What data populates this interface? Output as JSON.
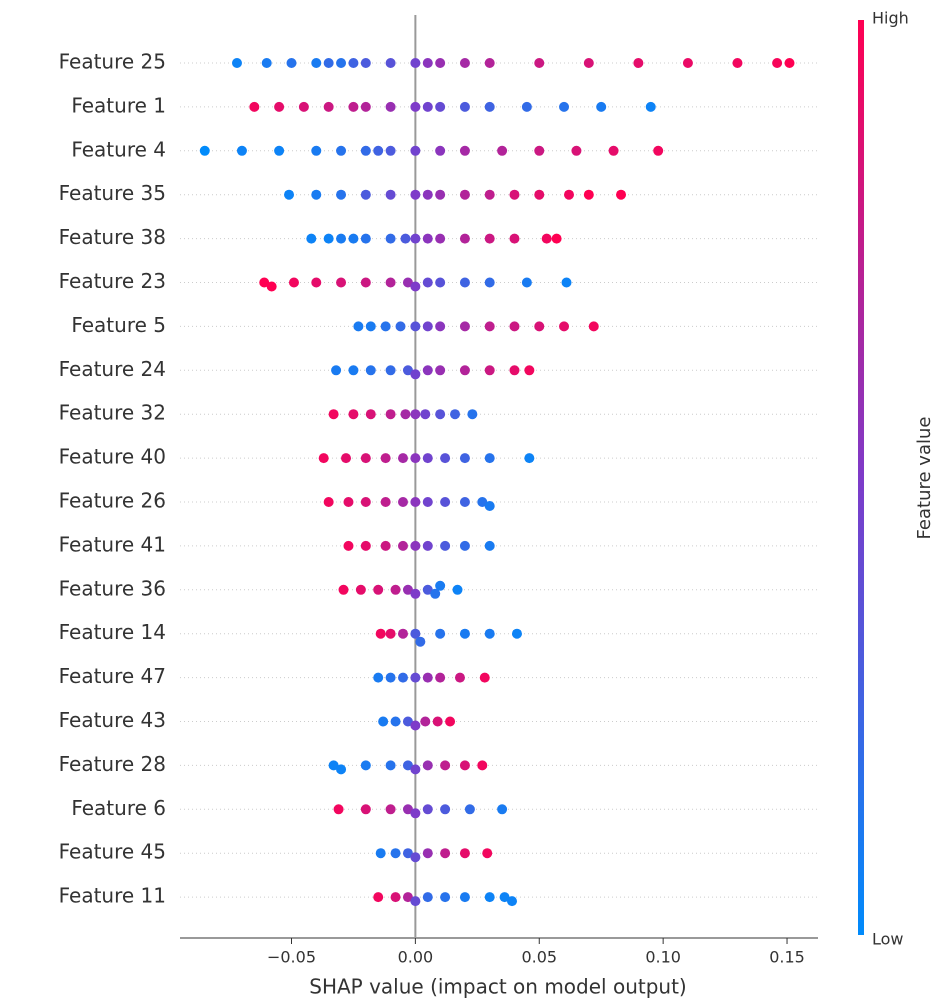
{
  "chart_data": {
    "type": "beeswarm",
    "xlabel": "SHAP value (impact on model output)",
    "xlim": [
      -0.095,
      0.1625
    ],
    "xticks": [
      {
        "value": -0.05,
        "label": "−0.05"
      },
      {
        "value": 0,
        "label": "0.00"
      },
      {
        "value": 0.05,
        "label": "0.05"
      },
      {
        "value": 0.1,
        "label": "0.10"
      },
      {
        "value": 0.15,
        "label": "0.15"
      }
    ],
    "colormap": [
      "#008bfb",
      "#7e3bc9",
      "#ff0052"
    ],
    "colorbar": {
      "label": "Feature value",
      "high": "High",
      "low": "Low"
    },
    "series": [
      {
        "name": "Feature 25",
        "values": [
          -0.072,
          -0.06,
          -0.05,
          -0.04,
          -0.035,
          -0.03,
          -0.025,
          -0.02,
          -0.01,
          0,
          0.005,
          0.01,
          0.02,
          0.03,
          0.05,
          0.07,
          0.09,
          0.11,
          0.13,
          0.146,
          0.151
        ],
        "feature_values": [
          0.05,
          0.1,
          0.15,
          0.1,
          0.2,
          0.15,
          0.25,
          0.3,
          0.35,
          0.45,
          0.55,
          0.6,
          0.65,
          0.7,
          0.8,
          0.85,
          0.9,
          0.92,
          0.95,
          0.97,
          1
        ]
      },
      {
        "name": "Feature 1",
        "values": [
          -0.065,
          -0.055,
          -0.045,
          -0.035,
          -0.025,
          -0.02,
          -0.01,
          0,
          0.005,
          0.01,
          0.02,
          0.03,
          0.045,
          0.06,
          0.075,
          0.095
        ],
        "feature_values": [
          0.95,
          0.9,
          0.85,
          0.8,
          0.75,
          0.7,
          0.6,
          0.5,
          0.45,
          0.4,
          0.3,
          0.25,
          0.2,
          0.15,
          0.1,
          0.05
        ]
      },
      {
        "name": "Feature 4",
        "values": [
          -0.085,
          -0.07,
          -0.055,
          -0.04,
          -0.03,
          -0.02,
          -0.015,
          -0.01,
          0,
          0.01,
          0.02,
          0.035,
          0.05,
          0.065,
          0.08,
          0.098
        ],
        "feature_values": [
          0,
          0.05,
          0.05,
          0.1,
          0.15,
          0.2,
          0.25,
          0.3,
          0.45,
          0.55,
          0.65,
          0.7,
          0.8,
          0.85,
          0.9,
          0.95
        ]
      },
      {
        "name": "Feature 35",
        "values": [
          -0.051,
          -0.04,
          -0.03,
          -0.02,
          -0.01,
          0,
          0.005,
          0.01,
          0.02,
          0.03,
          0.04,
          0.05,
          0.062,
          0.07,
          0.083
        ],
        "feature_values": [
          0.05,
          0.1,
          0.15,
          0.3,
          0.4,
          0.5,
          0.55,
          0.6,
          0.7,
          0.75,
          0.85,
          0.9,
          0.95,
          1,
          1
        ]
      },
      {
        "name": "Feature 38",
        "values": [
          -0.042,
          -0.035,
          -0.03,
          -0.025,
          -0.02,
          -0.01,
          -0.004,
          0,
          0.005,
          0.01,
          0.02,
          0.03,
          0.04,
          0.053,
          0.057
        ],
        "feature_values": [
          0.05,
          0.05,
          0.1,
          0.1,
          0.15,
          0.2,
          0.3,
          0.45,
          0.55,
          0.6,
          0.7,
          0.8,
          0.85,
          0.95,
          1
        ]
      },
      {
        "name": "Feature 23",
        "values": [
          -0.061,
          -0.058,
          -0.049,
          -0.04,
          -0.03,
          -0.02,
          -0.01,
          -0.003,
          0,
          0.005,
          0.01,
          0.02,
          0.03,
          0.045,
          0.061
        ],
        "feature_values": [
          1,
          1,
          0.95,
          0.9,
          0.85,
          0.8,
          0.7,
          0.6,
          0.5,
          0.4,
          0.35,
          0.25,
          0.2,
          0.1,
          0.05
        ]
      },
      {
        "name": "Feature 5",
        "values": [
          -0.023,
          -0.018,
          -0.012,
          -0.006,
          0,
          0.005,
          0.01,
          0.02,
          0.03,
          0.04,
          0.05,
          0.06,
          0.072
        ],
        "feature_values": [
          0.1,
          0.1,
          0.15,
          0.2,
          0.35,
          0.45,
          0.55,
          0.65,
          0.75,
          0.8,
          0.85,
          0.9,
          0.95
        ]
      },
      {
        "name": "Feature 24",
        "values": [
          -0.032,
          -0.025,
          -0.018,
          -0.01,
          -0.003,
          0,
          0.005,
          0.01,
          0.02,
          0.03,
          0.04,
          0.046
        ],
        "feature_values": [
          0.1,
          0.1,
          0.15,
          0.2,
          0.3,
          0.45,
          0.55,
          0.6,
          0.7,
          0.8,
          0.9,
          0.95
        ]
      },
      {
        "name": "Feature 32",
        "values": [
          -0.033,
          -0.025,
          -0.018,
          -0.01,
          -0.004,
          0,
          0.004,
          0.01,
          0.016,
          0.023
        ],
        "feature_values": [
          0.95,
          0.9,
          0.85,
          0.75,
          0.65,
          0.55,
          0.45,
          0.35,
          0.25,
          0.15
        ]
      },
      {
        "name": "Feature 40",
        "values": [
          -0.037,
          -0.028,
          -0.02,
          -0.012,
          -0.005,
          0,
          0.005,
          0.012,
          0.02,
          0.03,
          0.046
        ],
        "feature_values": [
          0.95,
          0.9,
          0.85,
          0.75,
          0.65,
          0.55,
          0.45,
          0.35,
          0.25,
          0.15,
          0.05
        ]
      },
      {
        "name": "Feature 26",
        "values": [
          -0.035,
          -0.027,
          -0.02,
          -0.012,
          -0.005,
          0,
          0.005,
          0.012,
          0.02,
          0.027,
          0.03
        ],
        "feature_values": [
          0.95,
          0.9,
          0.85,
          0.75,
          0.65,
          0.55,
          0.45,
          0.35,
          0.25,
          0.15,
          0.1
        ]
      },
      {
        "name": "Feature 41",
        "values": [
          -0.027,
          -0.02,
          -0.012,
          -0.005,
          0,
          0.005,
          0.012,
          0.02,
          0.03
        ],
        "feature_values": [
          0.95,
          0.9,
          0.8,
          0.7,
          0.55,
          0.45,
          0.3,
          0.2,
          0.1
        ]
      },
      {
        "name": "Feature 36",
        "values": [
          -0.029,
          -0.022,
          -0.015,
          -0.008,
          -0.003,
          0,
          0.005,
          0.008,
          0.01,
          0.017
        ],
        "feature_values": [
          0.95,
          0.9,
          0.85,
          0.75,
          0.6,
          0.5,
          0.3,
          0.15,
          0.1,
          0.05
        ]
      },
      {
        "name": "Feature 14",
        "values": [
          -0.014,
          -0.01,
          -0.005,
          0,
          0.002,
          0.01,
          0.02,
          0.03,
          0.041
        ],
        "feature_values": [
          0.95,
          0.9,
          0.7,
          0.3,
          0.2,
          0.15,
          0.1,
          0.1,
          0.05
        ]
      },
      {
        "name": "Feature 47",
        "values": [
          -0.015,
          -0.01,
          -0.005,
          0,
          0.005,
          0.01,
          0.018,
          0.028
        ],
        "feature_values": [
          0.1,
          0.15,
          0.2,
          0.4,
          0.6,
          0.7,
          0.8,
          0.95
        ]
      },
      {
        "name": "Feature 43",
        "values": [
          -0.013,
          -0.008,
          -0.003,
          0,
          0.004,
          0.009,
          0.014
        ],
        "feature_values": [
          0.1,
          0.15,
          0.3,
          0.5,
          0.7,
          0.85,
          0.95
        ]
      },
      {
        "name": "Feature 28",
        "values": [
          -0.033,
          -0.03,
          -0.02,
          -0.01,
          -0.003,
          0,
          0.005,
          0.012,
          0.02,
          0.027
        ],
        "feature_values": [
          0.05,
          0.05,
          0.1,
          0.15,
          0.25,
          0.45,
          0.6,
          0.75,
          0.85,
          0.95
        ]
      },
      {
        "name": "Feature 6",
        "values": [
          -0.031,
          -0.02,
          -0.01,
          -0.003,
          0,
          0.005,
          0.012,
          0.022,
          0.035
        ],
        "feature_values": [
          0.95,
          0.85,
          0.75,
          0.6,
          0.5,
          0.4,
          0.3,
          0.2,
          0.1
        ]
      },
      {
        "name": "Feature 45",
        "values": [
          -0.014,
          -0.008,
          -0.003,
          0,
          0.005,
          0.012,
          0.02,
          0.029
        ],
        "feature_values": [
          0.1,
          0.15,
          0.25,
          0.4,
          0.6,
          0.75,
          0.9,
          0.95
        ]
      },
      {
        "name": "Feature 11",
        "values": [
          -0.015,
          -0.008,
          -0.003,
          0,
          0.005,
          0.012,
          0.02,
          0.03,
          0.036,
          0.039
        ],
        "feature_values": [
          0.95,
          0.85,
          0.7,
          0.4,
          0.2,
          0.15,
          0.1,
          0.05,
          0.05,
          0.05
        ]
      }
    ]
  }
}
